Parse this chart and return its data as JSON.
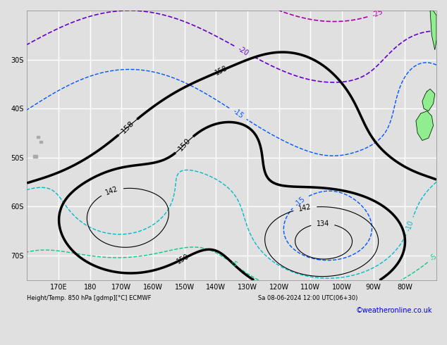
{
  "bottom_label": "Height/Temp. 850 hPa [gdmp][°C] ECMWF",
  "date_label": "Sa 08-06-2024 12:00 UTC(06+30)",
  "credit": "©weatheronline.co.uk",
  "bg_color": "#e0e0e0",
  "grid_color": "#ffffff",
  "xlim": [
    160,
    290
  ],
  "ylim": [
    -75,
    -20
  ],
  "xlabel_ticks": [
    170,
    180,
    190,
    200,
    210,
    220,
    230,
    240,
    250,
    260,
    270,
    280
  ],
  "xlabel_labels": [
    "170E",
    "180",
    "170W",
    "160W",
    "150W",
    "140W",
    "130W",
    "120W",
    "110W",
    "100W",
    "90W",
    "80W"
  ],
  "ylabel_ticks": [
    -70,
    -60,
    -50,
    -40,
    -30
  ],
  "ylabel_labels": [
    "70S",
    "60S",
    "50S",
    "40S",
    "30S"
  ],
  "fontsize_label": 7,
  "fontsize_contour": 7
}
